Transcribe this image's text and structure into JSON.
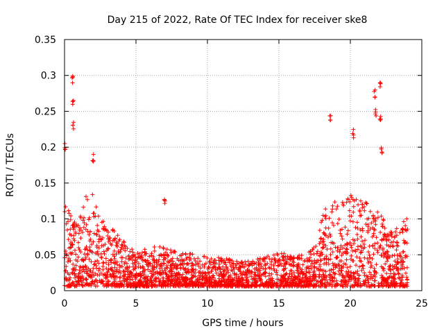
{
  "chart_data": {
    "type": "scatter",
    "title": "Day 215 of 2022, Rate Of TEC Index for receiver ske8",
    "xlabel": "GPS time / hours",
    "ylabel": "ROTI / TECUs",
    "xlim": [
      0,
      25
    ],
    "ylim": [
      0,
      0.35
    ],
    "x_ticks": [
      "0",
      "5",
      "10",
      "15",
      "20",
      "25"
    ],
    "y_ticks": [
      "0",
      "0.05",
      "0.1",
      "0.15",
      "0.2",
      "0.25",
      "0.3",
      "0.35"
    ],
    "grid": true,
    "legend": "none",
    "marker": "+",
    "color": "#ff0000",
    "envelope": {
      "x": [
        0,
        0.5,
        1,
        1.5,
        2,
        2.5,
        3,
        3.5,
        4,
        5,
        6,
        7,
        8,
        9,
        10,
        11,
        12,
        13,
        14,
        15,
        16,
        17,
        17.5,
        18,
        18.5,
        19,
        19.5,
        20,
        20.5,
        21,
        21.5,
        22,
        22.5,
        23,
        23.5,
        24
      ],
      "typical_max": [
        0.12,
        0.1,
        0.09,
        0.13,
        0.13,
        0.1,
        0.09,
        0.08,
        0.07,
        0.05,
        0.06,
        0.06,
        0.05,
        0.05,
        0.045,
        0.045,
        0.04,
        0.04,
        0.045,
        0.05,
        0.05,
        0.05,
        0.06,
        0.1,
        0.12,
        0.12,
        0.12,
        0.13,
        0.12,
        0.13,
        0.1,
        0.12,
        0.08,
        0.08,
        0.09,
        0.1
      ]
    },
    "peaks": [
      {
        "x": 0.55,
        "y": 0.3
      },
      {
        "x": 0.6,
        "y": 0.265
      },
      {
        "x": 0.6,
        "y": 0.235
      },
      {
        "x": 0.05,
        "y": 0.205
      },
      {
        "x": 2.0,
        "y": 0.19
      },
      {
        "x": 7.0,
        "y": 0.13
      },
      {
        "x": 18.6,
        "y": 0.245
      },
      {
        "x": 20.2,
        "y": 0.225
      },
      {
        "x": 21.7,
        "y": 0.28
      },
      {
        "x": 21.8,
        "y": 0.255
      },
      {
        "x": 22.1,
        "y": 0.29
      },
      {
        "x": 22.1,
        "y": 0.245
      },
      {
        "x": 22.2,
        "y": 0.2
      }
    ]
  }
}
